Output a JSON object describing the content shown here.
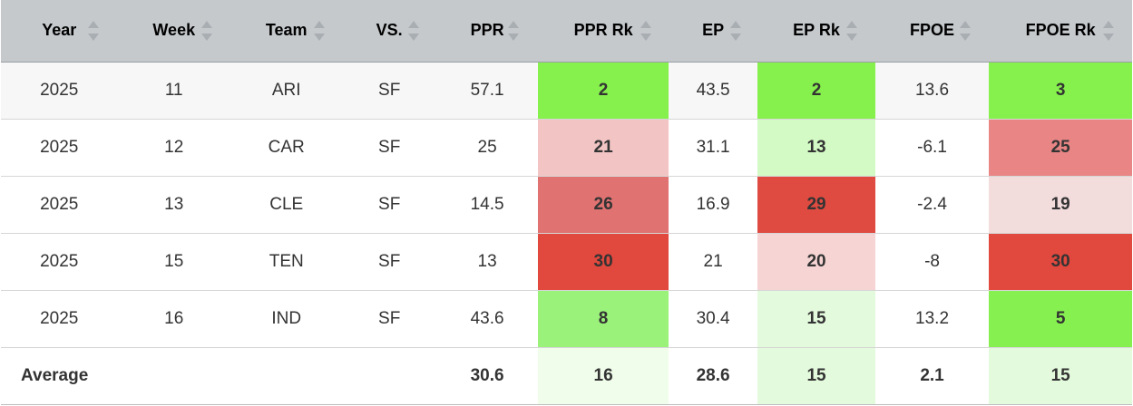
{
  "columns": [
    {
      "key": "year",
      "label": "Year"
    },
    {
      "key": "week",
      "label": "Week"
    },
    {
      "key": "team",
      "label": "Team"
    },
    {
      "key": "vs",
      "label": "VS."
    },
    {
      "key": "ppr",
      "label": "PPR"
    },
    {
      "key": "ppr_rk",
      "label": "PPR Rk"
    },
    {
      "key": "ep",
      "label": "EP"
    },
    {
      "key": "ep_rk",
      "label": "EP Rk"
    },
    {
      "key": "fpoe",
      "label": "FPOE"
    },
    {
      "key": "fpoe_rk",
      "label": "FPOE Rk"
    }
  ],
  "rows": [
    {
      "year": "2025",
      "week": "11",
      "team": "ARI",
      "vs": "SF",
      "ppr": "57.1",
      "ppr_rk": "2",
      "ep": "43.5",
      "ep_rk": "2",
      "fpoe": "13.6",
      "fpoe_rk": "3"
    },
    {
      "year": "2025",
      "week": "12",
      "team": "CAR",
      "vs": "SF",
      "ppr": "25",
      "ppr_rk": "21",
      "ep": "31.1",
      "ep_rk": "13",
      "fpoe": "-6.1",
      "fpoe_rk": "25"
    },
    {
      "year": "2025",
      "week": "13",
      "team": "CLE",
      "vs": "SF",
      "ppr": "14.5",
      "ppr_rk": "26",
      "ep": "16.9",
      "ep_rk": "29",
      "fpoe": "-2.4",
      "fpoe_rk": "19"
    },
    {
      "year": "2025",
      "week": "15",
      "team": "TEN",
      "vs": "SF",
      "ppr": "13",
      "ppr_rk": "30",
      "ep": "21",
      "ep_rk": "20",
      "fpoe": "-8",
      "fpoe_rk": "30"
    },
    {
      "year": "2025",
      "week": "16",
      "team": "IND",
      "vs": "SF",
      "ppr": "43.6",
      "ppr_rk": "8",
      "ep": "30.4",
      "ep_rk": "15",
      "fpoe": "13.2",
      "fpoe_rk": "5"
    }
  ],
  "rank_colors": [
    [
      "#86f04d",
      "#86f04d",
      "#86f04d"
    ],
    [
      "#f2c4c4",
      "#d3fac4",
      "#e98585"
    ],
    [
      "#e17272",
      "#df4b41",
      "#f2dcdc"
    ],
    [
      "#e1483e",
      "#f6d4d4",
      "#e1483e"
    ],
    [
      "#9bf27b",
      "#e4fadd",
      "#87f051"
    ]
  ],
  "average": {
    "label": "Average",
    "ppr": "30.6",
    "ppr_rk": "16",
    "ep": "28.6",
    "ep_rk": "15",
    "fpoe": "2.1",
    "fpoe_rk": "15"
  },
  "average_rank_colors": [
    "#f0fdea",
    "#e4fadd",
    "#e4fadd"
  ]
}
